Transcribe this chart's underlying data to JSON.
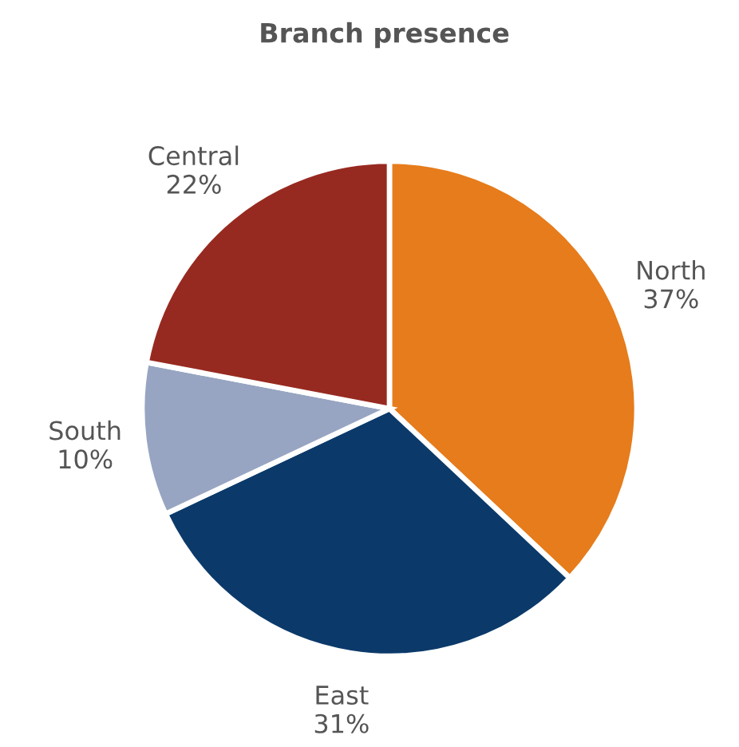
{
  "chart_data": {
    "type": "pie",
    "title": "Branch presence",
    "categories": [
      "North",
      "East",
      "South",
      "Central"
    ],
    "values": [
      37,
      31,
      10,
      22
    ],
    "value_labels": [
      "37%",
      "31%",
      "10%",
      "22%"
    ],
    "colors": [
      "#e67c1b",
      "#0b3a6a",
      "#97a5c2",
      "#972a20"
    ],
    "legend": false
  }
}
